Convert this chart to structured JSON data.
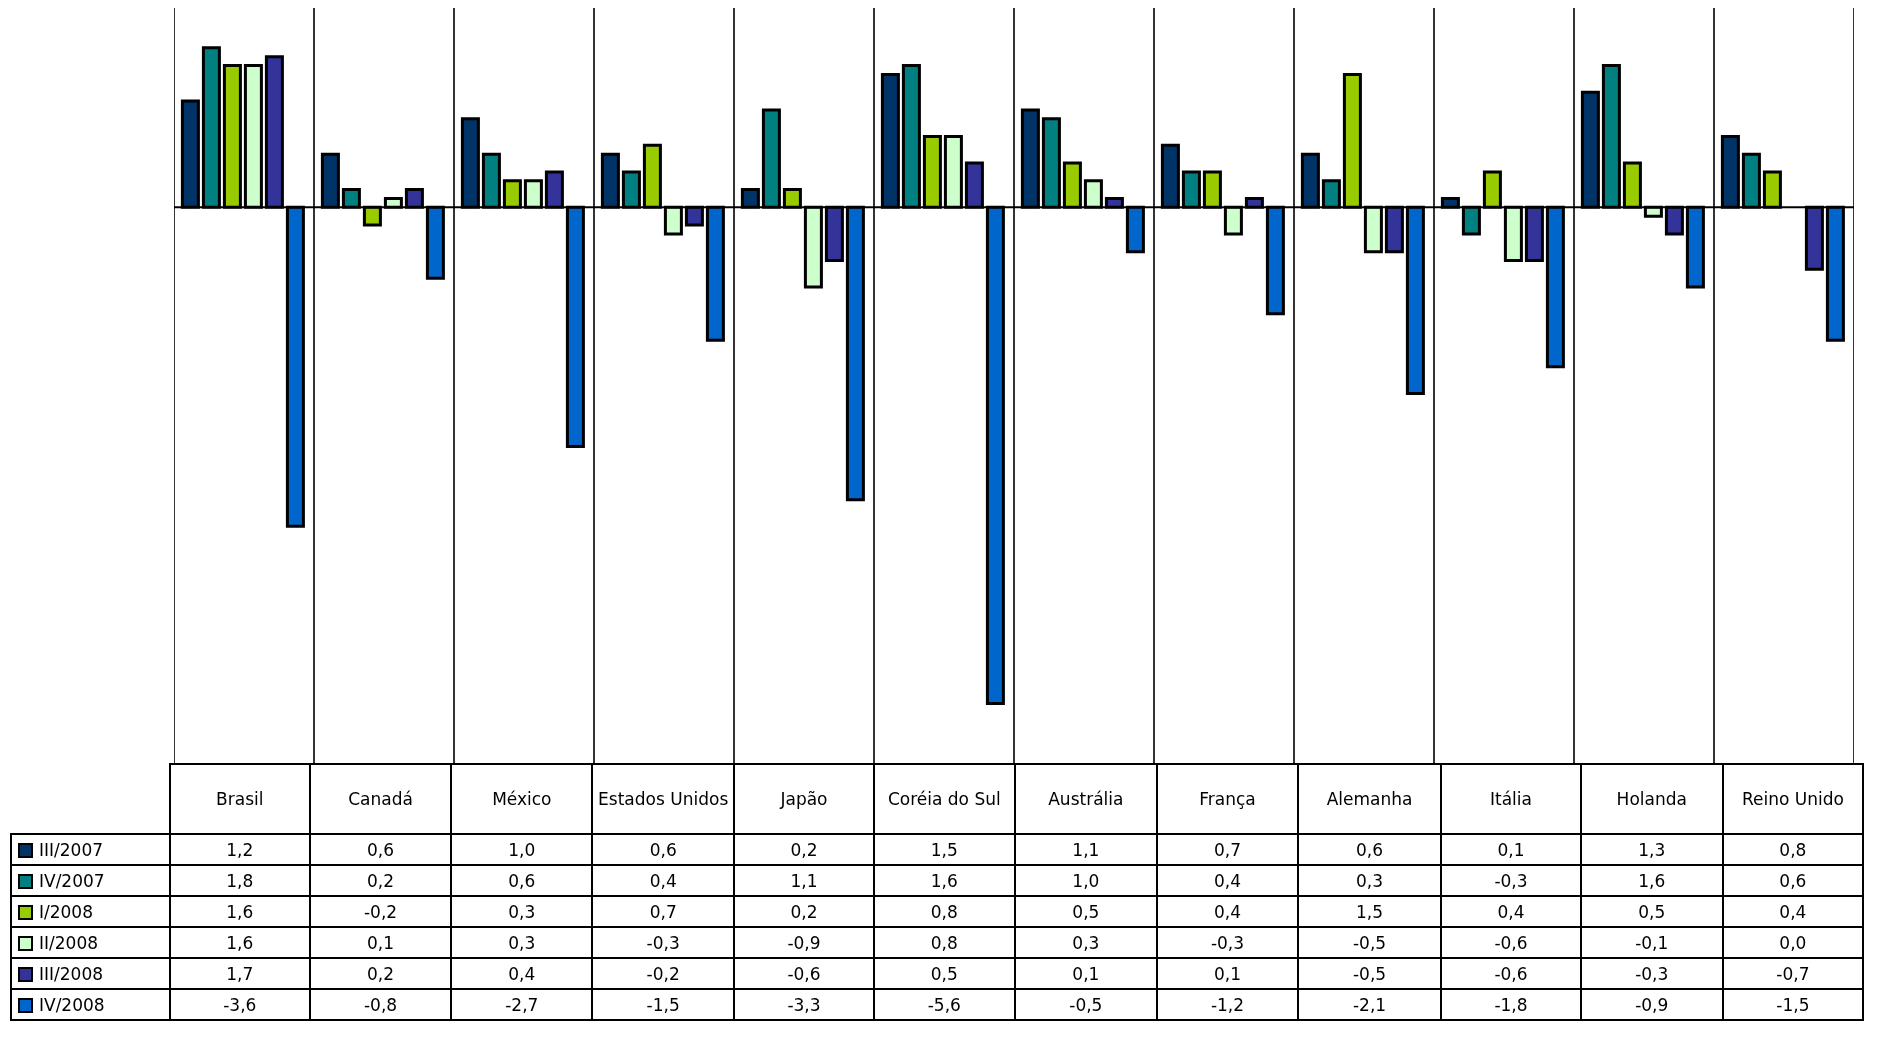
{
  "chart_data": {
    "type": "bar",
    "categories": [
      "Brasil",
      "Canadá",
      "México",
      "Estados Unidos",
      "Japão",
      "Coréia do Sul",
      "Austrália",
      "França",
      "Alemanha",
      "Itália",
      "Holanda",
      "Reino Unido"
    ],
    "series": [
      {
        "name": "III/2007",
        "color": "#003366",
        "values": [
          1.2,
          0.6,
          1.0,
          0.6,
          0.2,
          1.5,
          1.1,
          0.7,
          0.6,
          0.1,
          1.3,
          0.8
        ],
        "value_labels": [
          "1,2",
          "0,6",
          "1,0",
          "0,6",
          "0,2",
          "1,5",
          "1,1",
          "0,7",
          "0,6",
          "0,1",
          "1,3",
          "0,8"
        ]
      },
      {
        "name": "IV/2007",
        "color": "#008080",
        "values": [
          1.8,
          0.2,
          0.6,
          0.4,
          1.1,
          1.6,
          1.0,
          0.4,
          0.3,
          -0.3,
          1.6,
          0.6
        ],
        "value_labels": [
          "1,8",
          "0,2",
          "0,6",
          "0,4",
          "1,1",
          "1,6",
          "1,0",
          "0,4",
          "0,3",
          "-0,3",
          "1,6",
          "0,6"
        ]
      },
      {
        "name": "I/2008",
        "color": "#99cc00",
        "values": [
          1.6,
          -0.2,
          0.3,
          0.7,
          0.2,
          0.8,
          0.5,
          0.4,
          1.5,
          0.4,
          0.5,
          0.4
        ],
        "value_labels": [
          "1,6",
          "-0,2",
          "0,3",
          "0,7",
          "0,2",
          "0,8",
          "0,5",
          "0,4",
          "1,5",
          "0,4",
          "0,5",
          "0,4"
        ]
      },
      {
        "name": "II/2008",
        "color": "#ccffcc",
        "values": [
          1.6,
          0.1,
          0.3,
          -0.3,
          -0.9,
          0.8,
          0.3,
          -0.3,
          -0.5,
          -0.6,
          -0.1,
          0.0
        ],
        "value_labels": [
          "1,6",
          "0,1",
          "0,3",
          "-0,3",
          "-0,9",
          "0,8",
          "0,3",
          "-0,3",
          "-0,5",
          "-0,6",
          "-0,1",
          "0,0"
        ]
      },
      {
        "name": "III/2008",
        "color": "#333399",
        "values": [
          1.7,
          0.2,
          0.4,
          -0.2,
          -0.6,
          0.5,
          0.1,
          0.1,
          -0.5,
          -0.6,
          -0.3,
          -0.7
        ],
        "value_labels": [
          "1,7",
          "0,2",
          "0,4",
          "-0,2",
          "-0,6",
          "0,5",
          "0,1",
          "0,1",
          "-0,5",
          "-0,6",
          "-0,3",
          "-0,7"
        ]
      },
      {
        "name": "IV/2008",
        "color": "#0066cc",
        "values": [
          -3.6,
          -0.8,
          -2.7,
          -1.5,
          -3.3,
          -5.6,
          -0.5,
          -1.2,
          -2.1,
          -1.8,
          -0.9,
          -1.5
        ],
        "value_labels": [
          "-3,6",
          "-0,8",
          "-2,7",
          "-1,5",
          "-3,3",
          "-5,6",
          "-0,5",
          "-1,2",
          "-2,1",
          "-1,8",
          "-0,9",
          "-1,5"
        ]
      }
    ],
    "legend": "bottom",
    "grid": "x"
  }
}
